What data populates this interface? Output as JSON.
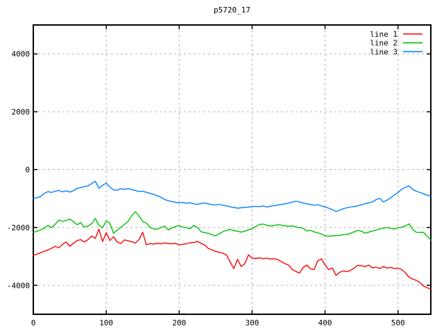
{
  "title": "p5720_17",
  "chart_data": {
    "type": "line",
    "title": "p5720_17",
    "xlabel": "",
    "ylabel": "",
    "xlim": [
      0,
      545
    ],
    "ylim": [
      -5000,
      5000
    ],
    "xticks": [
      0,
      100,
      200,
      300,
      400,
      500
    ],
    "yticks": [
      -4000,
      -2000,
      0,
      2000,
      4000
    ],
    "grid": true,
    "grid_color": "#b0b0b0",
    "border_color": "#000000",
    "legend_position": "top-right-inside",
    "legend": [
      "line 1",
      "line 2",
      "line 3"
    ],
    "series": [
      {
        "name": "line 1",
        "color": "#ff0000",
        "x_start": 0,
        "x_step": 5,
        "y": [
          -2960,
          -2920,
          -2870,
          -2820,
          -2780,
          -2720,
          -2650,
          -2700,
          -2580,
          -2500,
          -2650,
          -2550,
          -2450,
          -2420,
          -2500,
          -2420,
          -2300,
          -2380,
          -2060,
          -2490,
          -2180,
          -2450,
          -2320,
          -2500,
          -2555,
          -2430,
          -2460,
          -2490,
          -2540,
          -2420,
          -2165,
          -2600,
          -2555,
          -2575,
          -2545,
          -2565,
          -2535,
          -2555,
          -2565,
          -2545,
          -2605,
          -2585,
          -2560,
          -2530,
          -2520,
          -2485,
          -2550,
          -2605,
          -2730,
          -2770,
          -2825,
          -2860,
          -2890,
          -2955,
          -3200,
          -3420,
          -3100,
          -3350,
          -3250,
          -2945,
          -3060,
          -3070,
          -3050,
          -3080,
          -3060,
          -3090,
          -3080,
          -3105,
          -3180,
          -3250,
          -3300,
          -3450,
          -3520,
          -3575,
          -3380,
          -3300,
          -3430,
          -3450,
          -3150,
          -3090,
          -3300,
          -3455,
          -3400,
          -3655,
          -3550,
          -3500,
          -3530,
          -3480,
          -3400,
          -3305,
          -3325,
          -3350,
          -3300,
          -3400,
          -3370,
          -3420,
          -3350,
          -3405,
          -3380,
          -3420,
          -3405,
          -3450,
          -3560,
          -3720,
          -3780,
          -3830,
          -3900,
          -4020,
          -4080,
          -4130
        ]
      },
      {
        "name": "line 2",
        "color": "#00c000",
        "x_start": 0,
        "x_step": 5,
        "y": [
          -2170,
          -2130,
          -2085,
          -2030,
          -1925,
          -2005,
          -1890,
          -1740,
          -1790,
          -1760,
          -1705,
          -1800,
          -1905,
          -1830,
          -1990,
          -1950,
          -1870,
          -1690,
          -1925,
          -2010,
          -1770,
          -1860,
          -2200,
          -2090,
          -1990,
          -1895,
          -1790,
          -1590,
          -1455,
          -1605,
          -1795,
          -1850,
          -1995,
          -2050,
          -2060,
          -2000,
          -1955,
          -2085,
          -2020,
          -1965,
          -1940,
          -1985,
          -2005,
          -2045,
          -1930,
          -2000,
          -2145,
          -2180,
          -2200,
          -2255,
          -2290,
          -2215,
          -2145,
          -2100,
          -2060,
          -2110,
          -2130,
          -2160,
          -2130,
          -2080,
          -2040,
          -1960,
          -1900,
          -1880,
          -1920,
          -1950,
          -1930,
          -1905,
          -1915,
          -1940,
          -1960,
          -1945,
          -1980,
          -2005,
          -2030,
          -2120,
          -2100,
          -2150,
          -2180,
          -2230,
          -2290,
          -2300,
          -2290,
          -2280,
          -2270,
          -2250,
          -2240,
          -2200,
          -2150,
          -2100,
          -2130,
          -2200,
          -2160,
          -2125,
          -2090,
          -2050,
          -2020,
          -2005,
          -2030,
          -2055,
          -2005,
          -1990,
          -1950,
          -1875,
          -2060,
          -2165,
          -2170,
          -2170,
          -2300,
          -2440
        ]
      },
      {
        "name": "line 3",
        "color": "#0080ff",
        "x_start": 0,
        "x_step": 5,
        "y": [
          -1000,
          -970,
          -930,
          -820,
          -760,
          -790,
          -745,
          -720,
          -770,
          -735,
          -775,
          -730,
          -650,
          -625,
          -585,
          -560,
          -480,
          -405,
          -640,
          -545,
          -465,
          -605,
          -700,
          -715,
          -655,
          -685,
          -655,
          -690,
          -725,
          -760,
          -745,
          -785,
          -820,
          -855,
          -905,
          -955,
          -1030,
          -1075,
          -1105,
          -1130,
          -1150,
          -1135,
          -1165,
          -1145,
          -1180,
          -1205,
          -1170,
          -1155,
          -1185,
          -1205,
          -1225,
          -1200,
          -1235,
          -1255,
          -1285,
          -1310,
          -1330,
          -1320,
          -1305,
          -1295,
          -1285,
          -1265,
          -1280,
          -1255,
          -1290,
          -1265,
          -1245,
          -1225,
          -1205,
          -1185,
          -1155,
          -1125,
          -1090,
          -1120,
          -1155,
          -1185,
          -1205,
          -1235,
          -1210,
          -1255,
          -1290,
          -1330,
          -1385,
          -1445,
          -1405,
          -1350,
          -1320,
          -1295,
          -1270,
          -1255,
          -1215,
          -1180,
          -1145,
          -1115,
          -1035,
          -995,
          -1115,
          -1055,
          -975,
          -875,
          -795,
          -675,
          -615,
          -560,
          -680,
          -745,
          -790,
          -835,
          -880,
          -920
        ]
      }
    ]
  }
}
